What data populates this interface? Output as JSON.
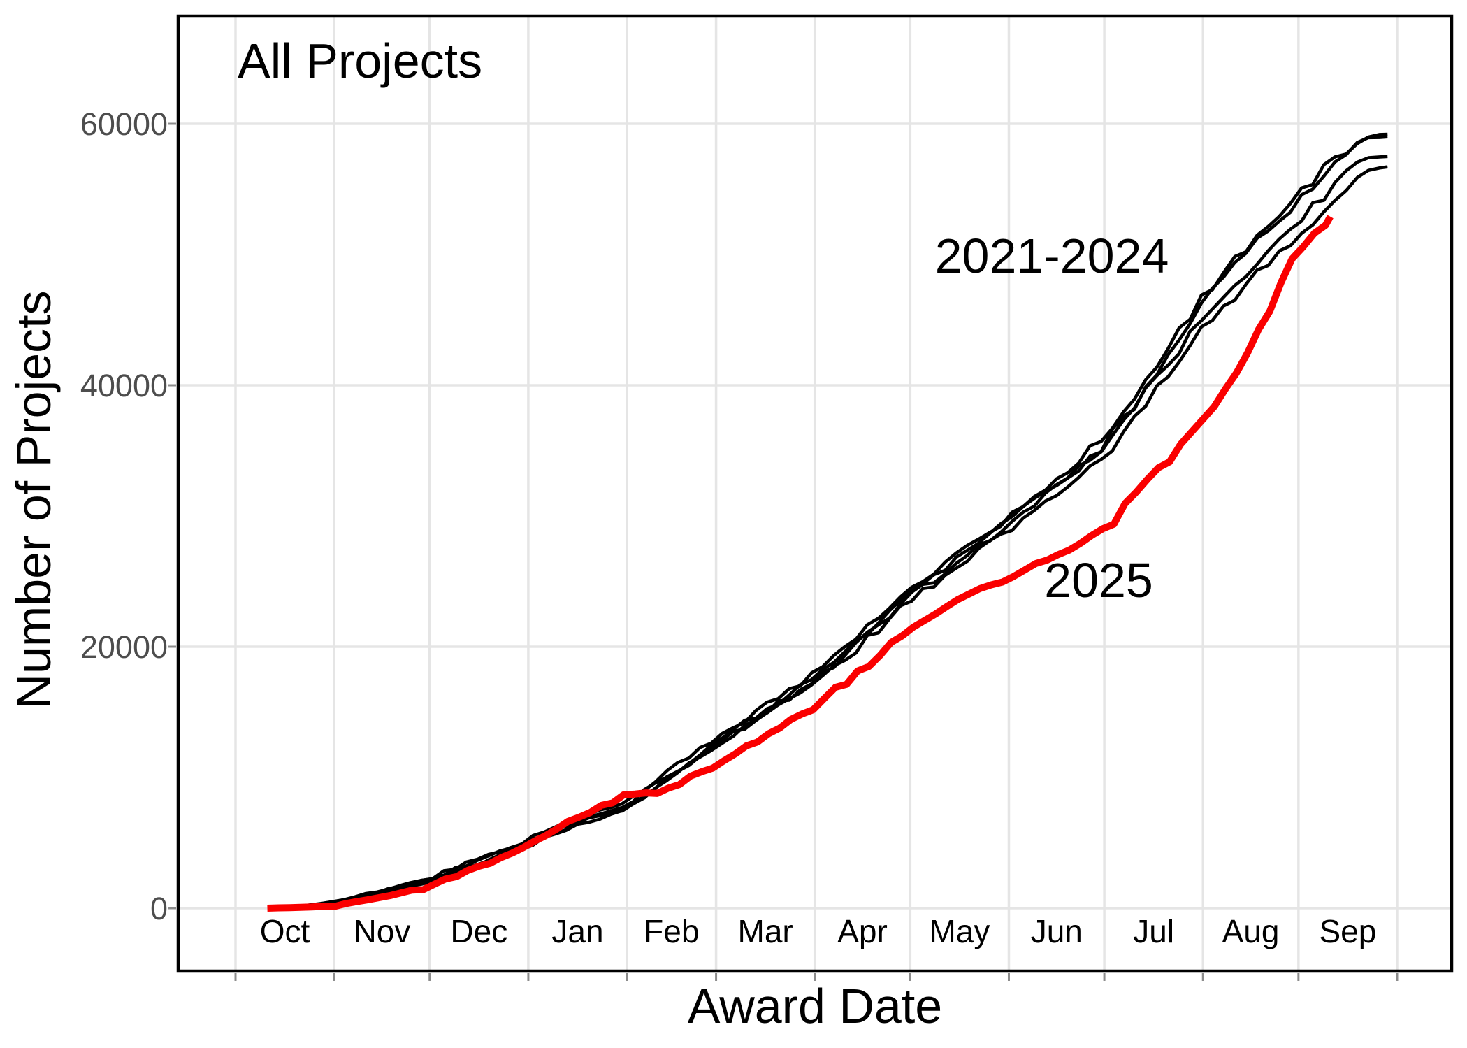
{
  "colors": {
    "red": "#FA0000",
    "black": "#000000",
    "grid": "#E5E5E5",
    "tick_mark": "#8C8C8C",
    "tick_text": "#4D4D4D",
    "panel_border": "#000000"
  },
  "annotations": {
    "prior_years_label": "2021-2024",
    "current_year_label": "2025"
  },
  "chart_data": {
    "type": "line",
    "title": "All Projects",
    "xlabel": "Award Date",
    "ylabel": "Number of Projects",
    "x_unit": "days since Oct 1 (federal fiscal year)",
    "x_tick_labels": [
      "Oct",
      "Nov",
      "Dec",
      "Jan",
      "Feb",
      "Mar",
      "Apr",
      "May",
      "Jun",
      "Jul",
      "Aug",
      "Sep"
    ],
    "month_start_days": [
      0,
      31,
      61,
      92,
      123,
      151,
      182,
      212,
      243,
      273,
      304,
      334,
      365
    ],
    "y_ticks": [
      0,
      20000,
      40000,
      60000
    ],
    "ylim": [
      -4800,
      68200
    ],
    "xlim_days": [
      -18,
      382
    ],
    "grid": "major-on",
    "legend": "none (direct line annotations)",
    "series": [
      {
        "name": "2021",
        "color": "black",
        "width": 4.6,
        "points": [
          [
            13,
            0
          ],
          [
            22,
            160
          ],
          [
            31,
            520
          ],
          [
            46,
            1350
          ],
          [
            61,
            2300
          ],
          [
            76,
            3750
          ],
          [
            92,
            5250
          ],
          [
            107,
            6950
          ],
          [
            123,
            8100
          ],
          [
            137,
            10600
          ],
          [
            151,
            13000
          ],
          [
            166,
            15400
          ],
          [
            182,
            17900
          ],
          [
            197,
            21100
          ],
          [
            212,
            24400
          ],
          [
            227,
            27200
          ],
          [
            243,
            29900
          ],
          [
            258,
            32900
          ],
          [
            273,
            36000
          ],
          [
            288,
            41100
          ],
          [
            304,
            46800
          ],
          [
            319,
            51000
          ],
          [
            334,
            54500
          ],
          [
            344,
            57000
          ],
          [
            352,
            58500
          ],
          [
            356,
            59100
          ],
          [
            362,
            59200
          ]
        ]
      },
      {
        "name": "2022",
        "color": "black",
        "width": 4.6,
        "points": [
          [
            13,
            0
          ],
          [
            22,
            130
          ],
          [
            31,
            440
          ],
          [
            46,
            1200
          ],
          [
            61,
            2050
          ],
          [
            76,
            3450
          ],
          [
            92,
            4900
          ],
          [
            107,
            6500
          ],
          [
            123,
            7700
          ],
          [
            137,
            10100
          ],
          [
            151,
            12500
          ],
          [
            166,
            14900
          ],
          [
            182,
            17400
          ],
          [
            197,
            20500
          ],
          [
            212,
            23800
          ],
          [
            227,
            26500
          ],
          [
            243,
            29300
          ],
          [
            258,
            32200
          ],
          [
            273,
            35400
          ],
          [
            288,
            40400
          ],
          [
            304,
            46200
          ],
          [
            319,
            50400
          ],
          [
            334,
            54000
          ],
          [
            344,
            56600
          ],
          [
            350,
            58100
          ],
          [
            356,
            58900
          ],
          [
            362,
            59000
          ]
        ]
      },
      {
        "name": "2023",
        "color": "black",
        "width": 4.6,
        "points": [
          [
            13,
            0
          ],
          [
            22,
            145
          ],
          [
            31,
            480
          ],
          [
            46,
            1280
          ],
          [
            61,
            2200
          ],
          [
            76,
            3600
          ],
          [
            92,
            5100
          ],
          [
            107,
            6700
          ],
          [
            123,
            7900
          ],
          [
            137,
            10300
          ],
          [
            151,
            12700
          ],
          [
            166,
            15100
          ],
          [
            182,
            17600
          ],
          [
            197,
            20800
          ],
          [
            212,
            24100
          ],
          [
            227,
            26800
          ],
          [
            243,
            29600
          ],
          [
            258,
            32400
          ],
          [
            273,
            35200
          ],
          [
            288,
            40100
          ],
          [
            304,
            45200
          ],
          [
            319,
            49000
          ],
          [
            334,
            52500
          ],
          [
            344,
            55000
          ],
          [
            352,
            56900
          ],
          [
            356,
            57400
          ],
          [
            362,
            57500
          ]
        ]
      },
      {
        "name": "2024",
        "color": "black",
        "width": 4.6,
        "points": [
          [
            13,
            0
          ],
          [
            22,
            120
          ],
          [
            31,
            410
          ],
          [
            46,
            1150
          ],
          [
            61,
            1950
          ],
          [
            76,
            3300
          ],
          [
            92,
            4750
          ],
          [
            107,
            6300
          ],
          [
            123,
            7500
          ],
          [
            137,
            9900
          ],
          [
            151,
            12300
          ],
          [
            166,
            14700
          ],
          [
            182,
            17200
          ],
          [
            197,
            20200
          ],
          [
            212,
            23500
          ],
          [
            227,
            26200
          ],
          [
            243,
            28900
          ],
          [
            258,
            31600
          ],
          [
            273,
            34500
          ],
          [
            288,
            39400
          ],
          [
            304,
            44400
          ],
          [
            319,
            48000
          ],
          [
            334,
            51400
          ],
          [
            344,
            54000
          ],
          [
            352,
            55900
          ],
          [
            356,
            56500
          ],
          [
            362,
            56700
          ]
        ]
      },
      {
        "name": "2025",
        "color": "red",
        "width": 10,
        "points": [
          [
            10,
            0
          ],
          [
            20,
            60
          ],
          [
            31,
            150
          ],
          [
            46,
            800
          ],
          [
            61,
            1600
          ],
          [
            76,
            3100
          ],
          [
            92,
            5000
          ],
          [
            107,
            6900
          ],
          [
            123,
            8700
          ],
          [
            127,
            8800
          ],
          [
            134,
            8850
          ],
          [
            141,
            9800
          ],
          [
            151,
            11000
          ],
          [
            166,
            13200
          ],
          [
            182,
            15400
          ],
          [
            197,
            18300
          ],
          [
            212,
            21200
          ],
          [
            227,
            23600
          ],
          [
            243,
            25300
          ],
          [
            258,
            27000
          ],
          [
            273,
            28900
          ],
          [
            288,
            32800
          ],
          [
            304,
            37700
          ],
          [
            313,
            40000
          ],
          [
            319,
            42800
          ],
          [
            327,
            46800
          ],
          [
            334,
            50300
          ],
          [
            344,
            52900
          ]
        ]
      }
    ]
  }
}
